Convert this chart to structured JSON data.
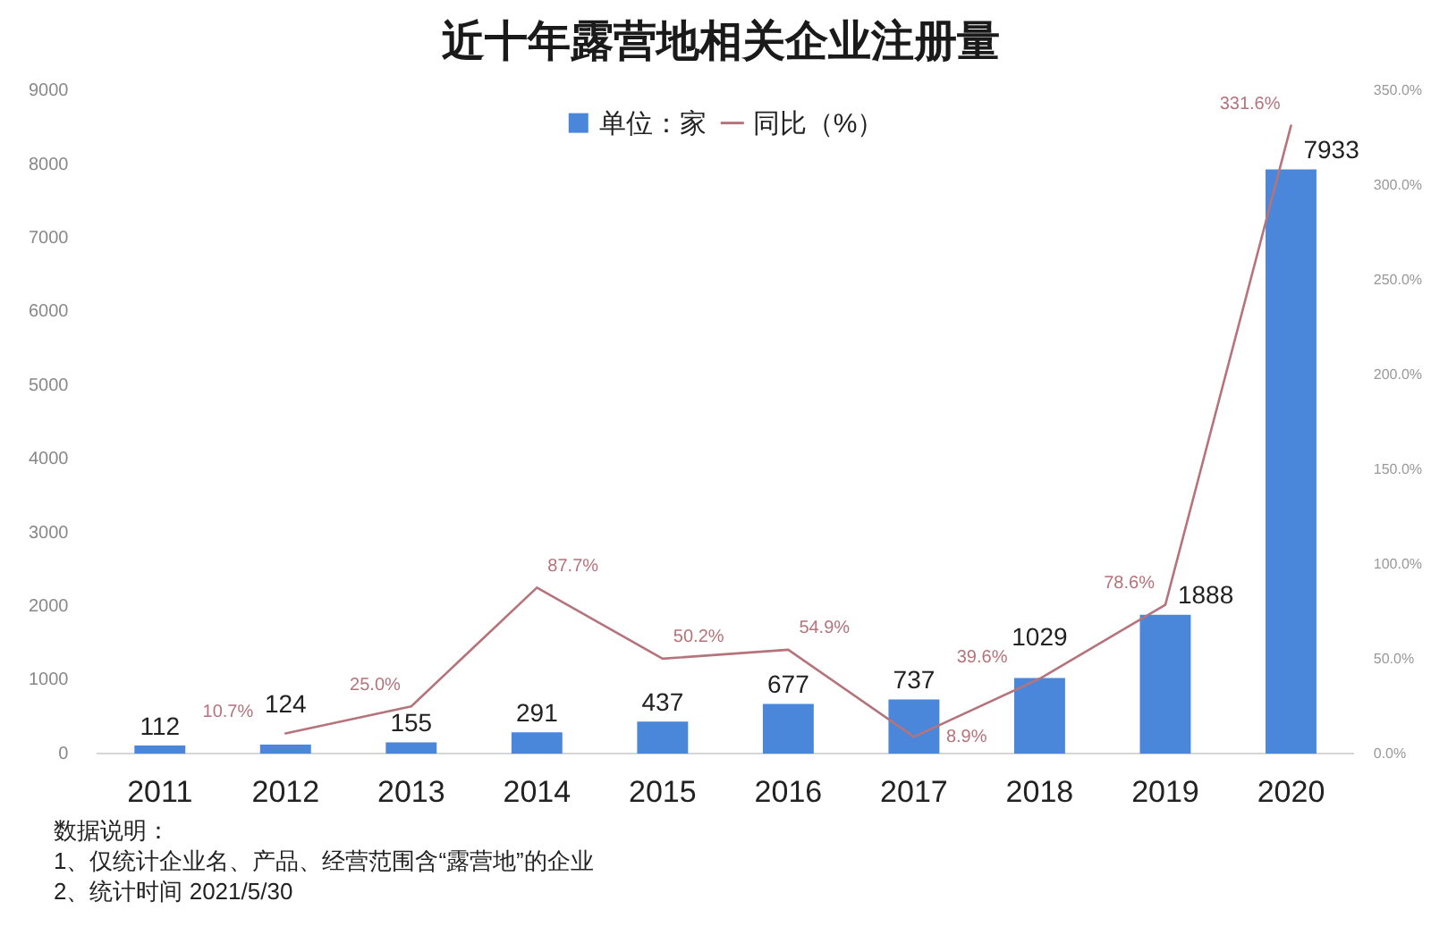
{
  "chart_data": {
    "type": "bar",
    "title": "近十年露营地相关企业注册量",
    "categories": [
      "2011",
      "2012",
      "2013",
      "2014",
      "2015",
      "2016",
      "2017",
      "2018",
      "2019",
      "2020"
    ],
    "series": [
      {
        "name": "单位：家",
        "color": "#4a86d9",
        "values": [
          112,
          124,
          155,
          291,
          437,
          677,
          737,
          1029,
          1888,
          7933
        ],
        "value_labels": [
          "112",
          "124",
          "155",
          "291",
          "437",
          "677",
          "737",
          "1029",
          "1888",
          "7933"
        ]
      },
      {
        "name": "同比（%）",
        "type": "line",
        "axis": "y2",
        "color": "#b5737c",
        "values": [
          null,
          10.7,
          25.0,
          87.7,
          50.2,
          54.9,
          8.9,
          39.6,
          78.6,
          331.6
        ],
        "value_labels": [
          null,
          "10.7%",
          "25.0%",
          "87.7%",
          "50.2%",
          "54.9%",
          "8.9%",
          "39.6%",
          "78.6%",
          "331.6%"
        ]
      }
    ],
    "ylim": [
      0,
      9000
    ],
    "yticks": [
      0,
      1000,
      2000,
      3000,
      4000,
      5000,
      6000,
      7000,
      8000,
      9000
    ],
    "y2lim": [
      0,
      350
    ],
    "y2ticks": [
      {
        "value": 0,
        "label": "0.0%"
      },
      {
        "value": 50,
        "label": "50.0%"
      },
      {
        "value": 100,
        "label": "100.0%"
      },
      {
        "value": 150,
        "label": "150.0%"
      },
      {
        "value": 200,
        "label": "200.0%"
      },
      {
        "value": 250,
        "label": "250.0%"
      },
      {
        "value": 300,
        "label": "300.0%"
      },
      {
        "value": 350,
        "label": "350.0%"
      }
    ],
    "legend": "top",
    "annotations": [
      "数据说明：",
      "1、仅统计企业名、产品、经营范围含“露营地”的企业",
      "2、统计时间 2021/5/30"
    ]
  }
}
